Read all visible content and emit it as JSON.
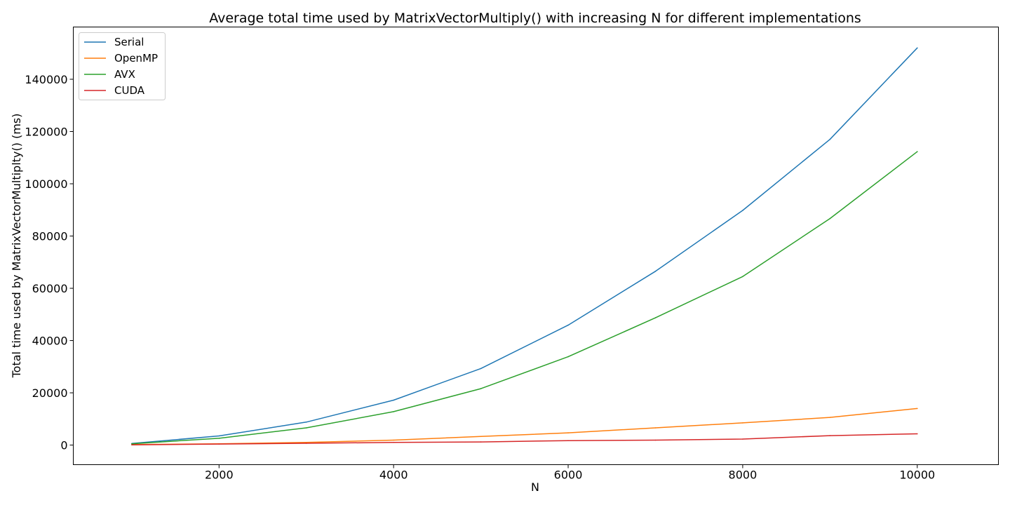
{
  "chart_data": {
    "type": "line",
    "title": "Average total time used by MatrixVectorMultiply() with increasing N for different implementations",
    "xlabel": "N",
    "ylabel": "Total time used by MatrixVectorMultiplty() (ms)",
    "xlim": [
      330,
      10930
    ],
    "ylim": [
      -7500,
      160000
    ],
    "xticks": [
      2000,
      4000,
      6000,
      8000,
      10000
    ],
    "yticks": [
      0,
      20000,
      40000,
      60000,
      80000,
      100000,
      120000,
      140000
    ],
    "grid": false,
    "legend": "top-left",
    "x": [
      1000,
      2000,
      3000,
      4000,
      5000,
      6000,
      7000,
      8000,
      9000,
      10000
    ],
    "series": [
      {
        "name": "Serial",
        "color": "#1f77b4",
        "values": [
          600,
          3500,
          8800,
          17200,
          29300,
          45900,
          66500,
          89800,
          117000,
          152000
        ]
      },
      {
        "name": "OpenMP",
        "color": "#ff7f0e",
        "values": [
          200,
          500,
          1000,
          1900,
          3300,
          4700,
          6600,
          8500,
          10600,
          14000
        ]
      },
      {
        "name": "AVX",
        "color": "#2ca02c",
        "values": [
          500,
          2600,
          6600,
          12800,
          21600,
          33800,
          48700,
          64500,
          86700,
          112300
        ]
      },
      {
        "name": "CUDA",
        "color": "#d62728",
        "values": [
          100,
          400,
          700,
          1000,
          1200,
          1700,
          1900,
          2300,
          3600,
          4300
        ]
      }
    ]
  }
}
